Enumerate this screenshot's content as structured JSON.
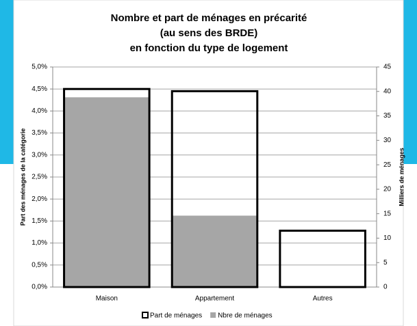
{
  "chart_data": {
    "type": "bar",
    "title_lines": [
      "Nombre et part de ménages en précarité",
      "(au sens des BRDE)",
      "en fonction du type de logement"
    ],
    "ylabel": "Part des ménages de la catégorie",
    "y2label": "Milliers de ménages",
    "categories": [
      "Maison",
      "Appartement",
      "Autres"
    ],
    "series": [
      {
        "name": "Part de ménages",
        "color": "#000000",
        "style": "outline",
        "values": [
          4.5,
          4.45,
          1.28
        ]
      },
      {
        "name": "Nbre de ménages",
        "color": "#a6a6a6",
        "style": "filled",
        "axis": "y2",
        "values": [
          38.8,
          14.6,
          0.2
        ]
      }
    ],
    "ylim": [
      0,
      5
    ],
    "yticks": [
      {
        "value": 0,
        "label": "0,0%"
      },
      {
        "value": 0.5,
        "label": "0,5%"
      },
      {
        "value": 1,
        "label": "1,0%"
      },
      {
        "value": 1.5,
        "label": "1,5%"
      },
      {
        "value": 2,
        "label": "2,0%"
      },
      {
        "value": 2.5,
        "label": "2,5%"
      },
      {
        "value": 3,
        "label": "3,0%"
      },
      {
        "value": 3.5,
        "label": "3,5%"
      },
      {
        "value": 4,
        "label": "4,0%"
      },
      {
        "value": 4.5,
        "label": "4,5%"
      },
      {
        "value": 5,
        "label": "5,0%"
      }
    ],
    "y2lim": [
      0,
      45
    ],
    "y2ticks": [
      0,
      5,
      10,
      15,
      20,
      25,
      30,
      35,
      40,
      45
    ],
    "grid": true,
    "legend": "bottom"
  }
}
